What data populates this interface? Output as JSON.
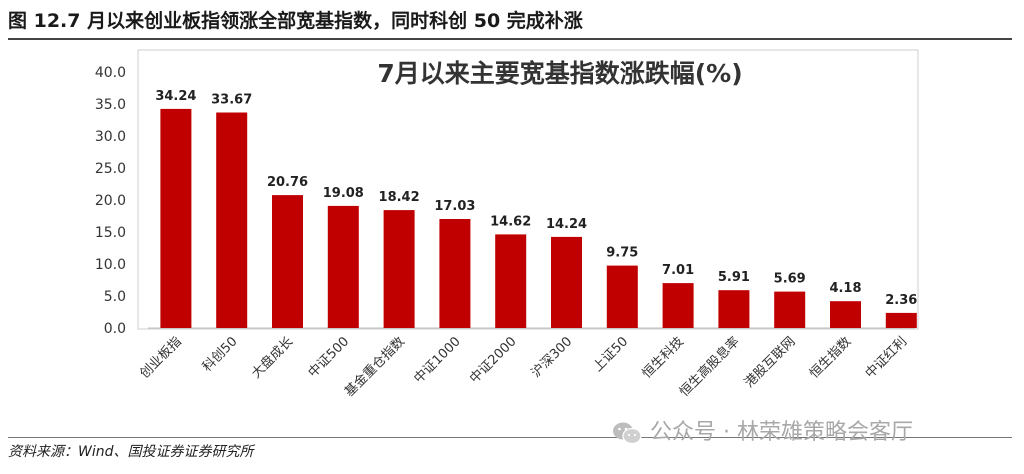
{
  "figure": {
    "caption": "图 12.7 月以来创业板指领涨全部宽基指数，同时科创 50 完成补涨",
    "source": "资料来源：Wind、国投证券证券研究所",
    "watermark": "公众号 · 林荣雄策略会客厅",
    "watermark_icon": "wechat-icon"
  },
  "chart_data": {
    "type": "bar",
    "title": "7月以来主要宽基指数涨跌幅(%)",
    "categories": [
      "创业板指",
      "科创50",
      "大盘成长",
      "中证500",
      "基金重仓指数",
      "中证1000",
      "中证2000",
      "沪深300",
      "上证50",
      "恒生科技",
      "恒生高股息率",
      "港股互联网",
      "恒生指数",
      "中证红利"
    ],
    "values": [
      34.24,
      33.67,
      20.76,
      19.08,
      18.42,
      17.03,
      14.62,
      14.24,
      9.75,
      7.01,
      5.91,
      5.69,
      4.18,
      2.36
    ],
    "value_labels": [
      "34.24",
      "33.67",
      "20.76",
      "19.08",
      "18.42",
      "17.03",
      "14.62",
      "14.24",
      "9.75",
      "7.01",
      "5.91",
      "5.69",
      "4.18",
      "2.36"
    ],
    "yticks": [
      "0.0",
      "5.0",
      "10.0",
      "15.0",
      "20.0",
      "25.0",
      "30.0",
      "35.0",
      "40.0"
    ],
    "ylim": [
      0,
      40
    ],
    "xlabel": "",
    "ylabel": "",
    "grid": false,
    "legend": "none",
    "bar_color": "#c00000"
  }
}
